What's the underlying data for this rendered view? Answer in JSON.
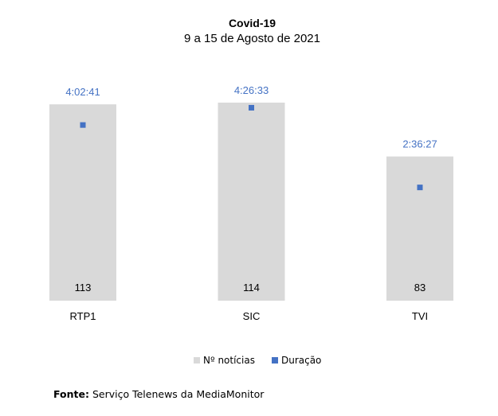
{
  "chart_data": {
    "type": "bar",
    "title": "Covid-19",
    "subtitle": "9 a 15 de Agosto de 2021",
    "categories": [
      "RTP1",
      "SIC",
      "TVI"
    ],
    "series": [
      {
        "name": "Nº notícias",
        "type": "bar",
        "values": [
          113,
          114,
          83
        ],
        "labels": [
          "113",
          "114",
          "83"
        ],
        "color": "#d9d9d9",
        "axis": "primary"
      },
      {
        "name": "Duração",
        "type": "scatter",
        "values": [
          "4:02:41",
          "4:26:33",
          "2:36:27"
        ],
        "labels": [
          "4:02:41",
          "4:26:33",
          "2:36:27"
        ],
        "color": "#4472c4",
        "axis": "secondary"
      }
    ],
    "ylim": [
      0,
      125
    ],
    "y2lim": [
      "0:00:00",
      "5:00:00"
    ],
    "grid": false,
    "legend": "bottom"
  },
  "source": {
    "label": "Fonte:",
    "text": " Serviço Telenews da MediaMonitor"
  }
}
